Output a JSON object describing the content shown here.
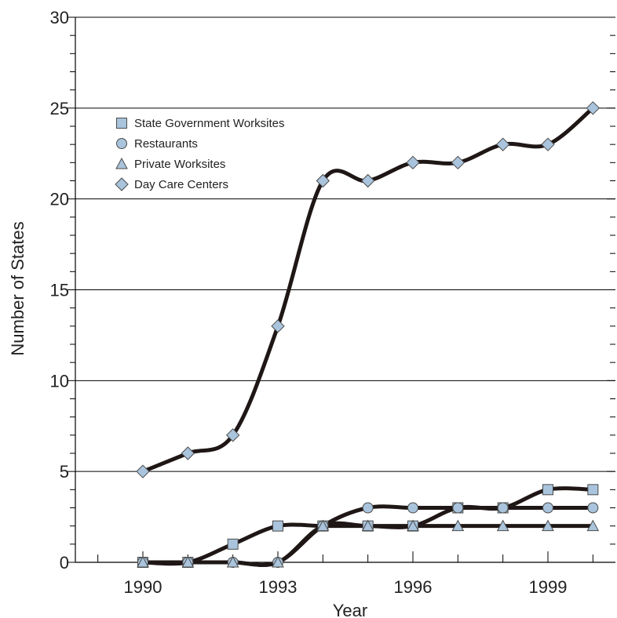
{
  "chart_data": {
    "type": "line",
    "title": "",
    "xlabel": "Year",
    "ylabel": "Number of States",
    "x": [
      1990,
      1991,
      1992,
      1993,
      1994,
      1995,
      1996,
      1997,
      1998,
      1999,
      2000
    ],
    "xlim": [
      1988.5,
      2000.5
    ],
    "ylim": [
      0,
      30
    ],
    "x_tick_labels": [
      "1990",
      "1993",
      "1996",
      "1999"
    ],
    "y_tick_labels": [
      "0",
      "5",
      "10",
      "15",
      "20",
      "25",
      "30"
    ],
    "grid": "horizontal at major y ticks",
    "legend_position": "upper-left",
    "series": [
      {
        "name": "State Government Worksites",
        "marker": "square",
        "values": [
          0,
          0,
          1,
          2,
          2,
          2,
          2,
          3,
          3,
          4,
          4
        ]
      },
      {
        "name": "Restaurants",
        "marker": "circle",
        "values": [
          0,
          0,
          0,
          0,
          2,
          3,
          3,
          3,
          3,
          3,
          3
        ]
      },
      {
        "name": "Private Worksites",
        "marker": "triangle",
        "values": [
          0,
          0,
          0,
          0,
          2,
          2,
          2,
          2,
          2,
          2,
          2
        ]
      },
      {
        "name": "Day Care Centers",
        "marker": "diamond",
        "values": [
          5,
          6,
          7,
          13,
          21,
          21,
          22,
          22,
          23,
          23,
          25
        ]
      }
    ],
    "colors": {
      "marker_fill": "#a9c4dc",
      "marker_stroke": "#4a4a4a",
      "line": "#1f1616",
      "grid": "#000000"
    }
  }
}
